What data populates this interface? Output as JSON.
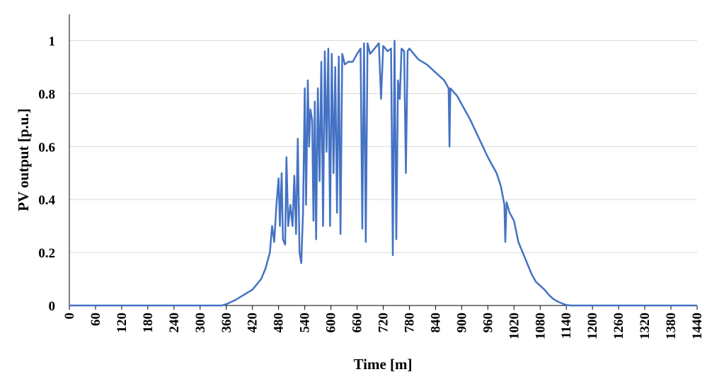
{
  "chart_data": {
    "type": "line",
    "ylabel": "PV output [p.u.]",
    "xlabel": "Time [m]",
    "xlim": [
      0,
      1440
    ],
    "xticks": [
      0,
      60,
      120,
      180,
      240,
      300,
      360,
      420,
      480,
      540,
      600,
      660,
      720,
      780,
      840,
      900,
      960,
      1020,
      1080,
      1140,
      1200,
      1260,
      1320,
      1380,
      1440
    ],
    "ylim": [
      0,
      1.1
    ],
    "yticks": [
      0,
      0.2,
      0.4,
      0.6,
      0.8,
      1
    ],
    "grid": true,
    "series": [
      {
        "color": "#4472c4",
        "x": [
          0,
          350,
          360,
          380,
          400,
          420,
          440,
          450,
          460,
          465,
          470,
          475,
          480,
          483,
          487,
          490,
          495,
          498,
          502,
          507,
          512,
          516,
          520,
          524,
          528,
          532,
          536,
          540,
          543,
          547,
          550,
          553,
          557,
          560,
          563,
          566,
          570,
          574,
          578,
          582,
          586,
          590,
          594,
          598,
          602,
          606,
          610,
          614,
          618,
          622,
          626,
          632,
          640,
          650,
          660,
          668,
          672,
          676,
          680,
          684,
          690,
          700,
          710,
          715,
          720,
          730,
          738,
          742,
          746,
          750,
          754,
          758,
          762,
          768,
          772,
          776,
          780,
          790,
          800,
          820,
          840,
          860,
          870,
          872,
          874,
          890,
          900,
          920,
          940,
          960,
          980,
          990,
          998,
          1000,
          1003,
          1010,
          1020,
          1030,
          1040,
          1050,
          1060,
          1070,
          1080,
          1090,
          1100,
          1110,
          1120,
          1130,
          1140,
          1150,
          1440
        ],
        "values": [
          0,
          0,
          0.005,
          0.02,
          0.04,
          0.06,
          0.1,
          0.14,
          0.2,
          0.3,
          0.24,
          0.38,
          0.48,
          0.3,
          0.5,
          0.25,
          0.23,
          0.56,
          0.3,
          0.38,
          0.3,
          0.49,
          0.27,
          0.63,
          0.2,
          0.16,
          0.35,
          0.82,
          0.38,
          0.85,
          0.6,
          0.74,
          0.7,
          0.32,
          0.77,
          0.25,
          0.82,
          0.47,
          0.92,
          0.3,
          0.96,
          0.58,
          0.97,
          0.3,
          0.95,
          0.5,
          0.9,
          0.35,
          0.94,
          0.27,
          0.95,
          0.91,
          0.92,
          0.92,
          0.95,
          0.97,
          0.29,
          0.99,
          0.24,
          0.99,
          0.95,
          0.97,
          0.99,
          0.78,
          0.98,
          0.96,
          0.97,
          0.19,
          1.0,
          0.25,
          0.85,
          0.78,
          0.97,
          0.96,
          0.5,
          0.96,
          0.97,
          0.95,
          0.93,
          0.91,
          0.88,
          0.85,
          0.82,
          0.6,
          0.82,
          0.79,
          0.76,
          0.7,
          0.63,
          0.56,
          0.5,
          0.45,
          0.38,
          0.24,
          0.39,
          0.35,
          0.32,
          0.24,
          0.2,
          0.16,
          0.12,
          0.09,
          0.075,
          0.06,
          0.04,
          0.025,
          0.015,
          0.008,
          0.002,
          0,
          0
        ]
      }
    ]
  }
}
